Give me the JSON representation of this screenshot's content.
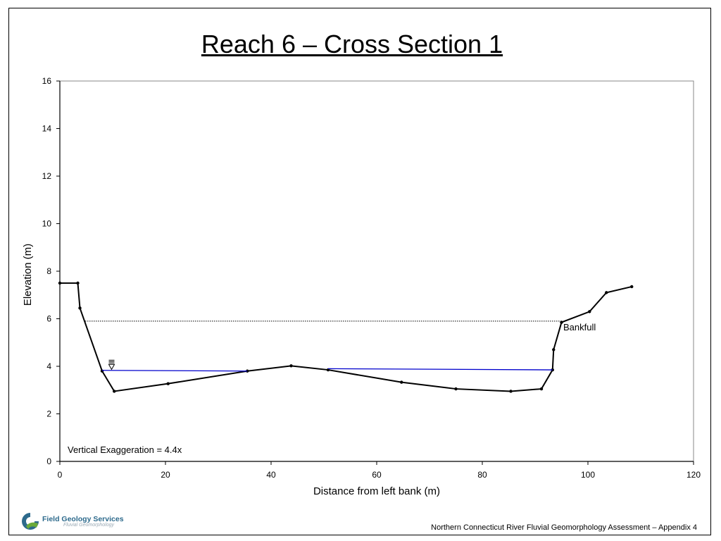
{
  "slide": {
    "title": "Reach 6 – Cross Section 1",
    "footer": "Northern Connecticut River Fluvial Geomorphology Assessment – Appendix 4"
  },
  "logo": {
    "name": "Field Geology Services",
    "tagline": "Fluvial Geomorphology",
    "colors": {
      "primary": "#2d6a8c",
      "accent": "#6aaa3a"
    }
  },
  "chart_data": {
    "type": "line",
    "xlabel": "Distance from left bank (m)",
    "ylabel": "Elevation (m)",
    "xlim": [
      0,
      120
    ],
    "ylim": [
      0,
      16
    ],
    "xticks": [
      0,
      20,
      40,
      60,
      80,
      100,
      120
    ],
    "yticks": [
      0,
      2,
      4,
      6,
      8,
      10,
      12,
      14,
      16
    ],
    "grid": false,
    "series": [
      {
        "role": "ground-profile",
        "color": "#000000",
        "x": [
          0,
          3.4,
          3.8,
          8,
          10.3,
          20.5,
          35.5,
          43.8,
          50.8,
          64.7,
          75,
          85.4,
          91.2,
          93.3,
          93.5,
          95,
          100.3,
          103.5,
          108.3
        ],
        "y": [
          7.5,
          7.5,
          6.45,
          3.8,
          2.95,
          3.27,
          3.8,
          4.02,
          3.85,
          3.33,
          3.05,
          2.95,
          3.05,
          3.85,
          4.7,
          5.85,
          6.3,
          7.1,
          7.35
        ]
      },
      {
        "role": "water-surface-left",
        "color": "#0000cc",
        "x": [
          8,
          35.5
        ],
        "y": [
          3.83,
          3.8
        ]
      },
      {
        "role": "water-surface-right",
        "color": "#0000cc",
        "x": [
          50.8,
          93.3
        ],
        "y": [
          3.9,
          3.85
        ]
      }
    ],
    "bankfull": {
      "label": "Bankfull",
      "y": 5.9,
      "x_start": 4.8,
      "x_end": 95
    },
    "water_symbol": {
      "x": 9.8,
      "y": 4.05
    },
    "annotation": "Vertical Exaggeration = 4.4x"
  }
}
